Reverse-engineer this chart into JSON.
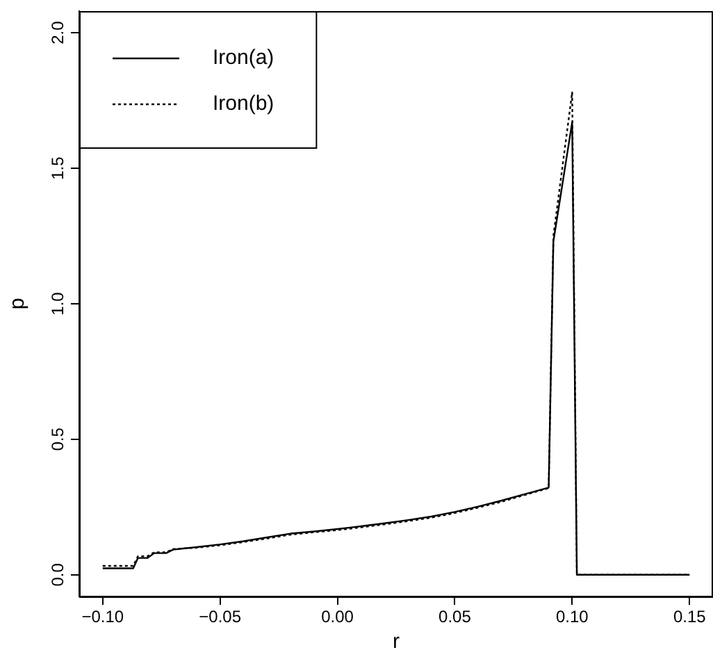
{
  "chart_data": {
    "type": "line",
    "xlabel": "r",
    "ylabel": "p",
    "xlim": [
      -0.11,
      0.16
    ],
    "ylim": [
      -0.08,
      2.08
    ],
    "xticks": [
      {
        "value": -0.1,
        "label": "−0.10"
      },
      {
        "value": -0.05,
        "label": "−0.05"
      },
      {
        "value": 0,
        "label": "0.00"
      },
      {
        "value": 0.05,
        "label": "0.05"
      },
      {
        "value": 0.1,
        "label": "0.10"
      },
      {
        "value": 0.15,
        "label": "0.15"
      }
    ],
    "yticks": [
      {
        "value": 0,
        "label": "0.0"
      },
      {
        "value": 0.5,
        "label": "0.5"
      },
      {
        "value": 1,
        "label": "1.0"
      },
      {
        "value": 1.5,
        "label": "1.5"
      },
      {
        "value": 2,
        "label": "2.0"
      }
    ],
    "grid": false,
    "legend": "top left",
    "marker": "none",
    "series": [
      {
        "name": "Iron(a)",
        "color": "#000000",
        "line_style": "solid",
        "x": [
          -0.1,
          -0.087,
          -0.085,
          -0.081,
          -0.078,
          -0.073,
          -0.07,
          -0.06,
          -0.05,
          -0.04,
          -0.03,
          -0.02,
          -0.01,
          0,
          0.01,
          0.02,
          0.03,
          0.04,
          0.05,
          0.06,
          0.07,
          0.08,
          0.09,
          0.092,
          0.1,
          0.102,
          0.15
        ],
        "values": [
          0.024,
          0.024,
          0.062,
          0.062,
          0.08,
          0.08,
          0.093,
          0.102,
          0.112,
          0.124,
          0.138,
          0.152,
          0.16,
          0.169,
          0.179,
          0.19,
          0.202,
          0.215,
          0.232,
          0.252,
          0.274,
          0.298,
          0.322,
          1.23,
          1.67,
          0,
          0
        ]
      },
      {
        "name": "Iron(b)",
        "color": "#000000",
        "line_style": "dotted",
        "x": [
          -0.1,
          -0.087,
          -0.085,
          -0.081,
          -0.078,
          -0.073,
          -0.07,
          -0.06,
          -0.05,
          -0.04,
          -0.03,
          -0.02,
          -0.01,
          0,
          0.01,
          0.02,
          0.03,
          0.04,
          0.05,
          0.06,
          0.07,
          0.08,
          0.09,
          0.092,
          0.1,
          0.102,
          0.15
        ],
        "values": [
          0.033,
          0.033,
          0.068,
          0.068,
          0.083,
          0.083,
          0.095,
          0.1,
          0.109,
          0.121,
          0.134,
          0.148,
          0.157,
          0.165,
          0.175,
          0.186,
          0.198,
          0.211,
          0.228,
          0.248,
          0.27,
          0.295,
          0.32,
          1.25,
          1.78,
          0,
          0
        ]
      }
    ]
  }
}
